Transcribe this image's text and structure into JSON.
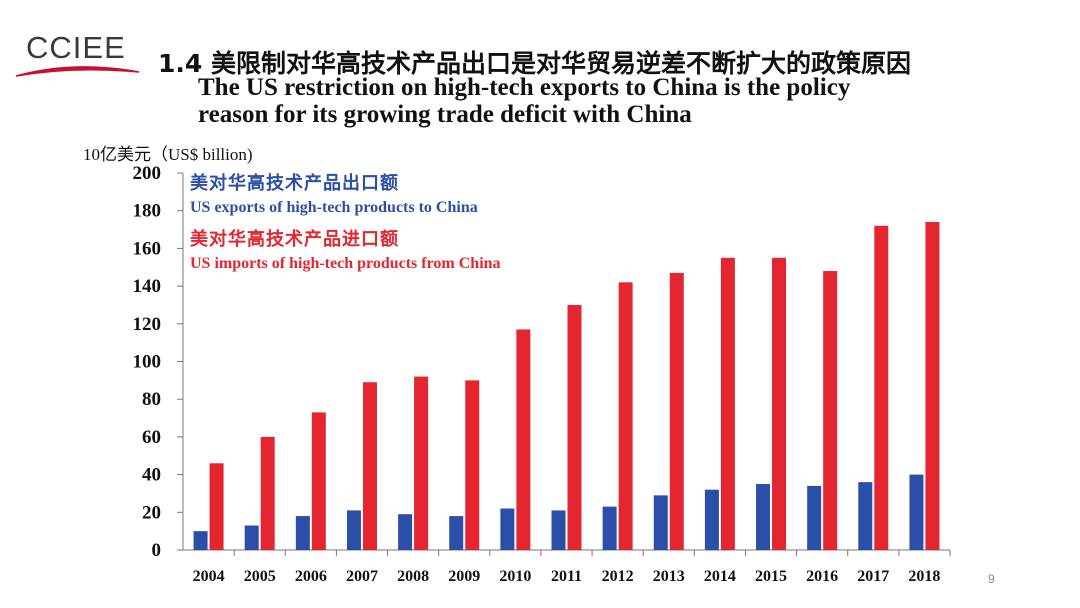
{
  "header": {
    "logo_text": "CCIEE",
    "title_zh": "1.4 美限制对华高技术产品出口是对华贸易逆差不断扩大的政策原因",
    "title_en_line1": "The US restriction on high-tech exports to China is  the policy",
    "title_en_line2": "reason for its growing trade deficit with China"
  },
  "page_number": "9",
  "colors": {
    "exports": "#2b4fa8",
    "imports": "#e3262f",
    "logo_swoosh": "#c8102e"
  },
  "chart_data": {
    "type": "bar",
    "ylabel": "10亿美元（US$ billion)",
    "categories": [
      "2004",
      "2005",
      "2006",
      "2007",
      "2008",
      "2009",
      "2010",
      "2011",
      "2012",
      "2013",
      "2014",
      "2015",
      "2016",
      "2017",
      "2018"
    ],
    "series": [
      {
        "name": "US exports of high-tech products to China",
        "name_zh": "美对华高技术产品出口额",
        "values": [
          10,
          13,
          18,
          21,
          19,
          18,
          22,
          21,
          23,
          29,
          32,
          35,
          34,
          36,
          40
        ]
      },
      {
        "name": "US imports of high-tech products from China",
        "name_zh": "美对华高技术产品进口额",
        "values": [
          46,
          60,
          73,
          89,
          92,
          90,
          117,
          130,
          142,
          147,
          155,
          155,
          148,
          172,
          174
        ]
      }
    ],
    "ylim": [
      0,
      200
    ],
    "yticks": [
      0,
      20,
      40,
      60,
      80,
      100,
      120,
      140,
      160,
      180,
      200
    ],
    "legend_position": "top-left",
    "grid": false
  }
}
